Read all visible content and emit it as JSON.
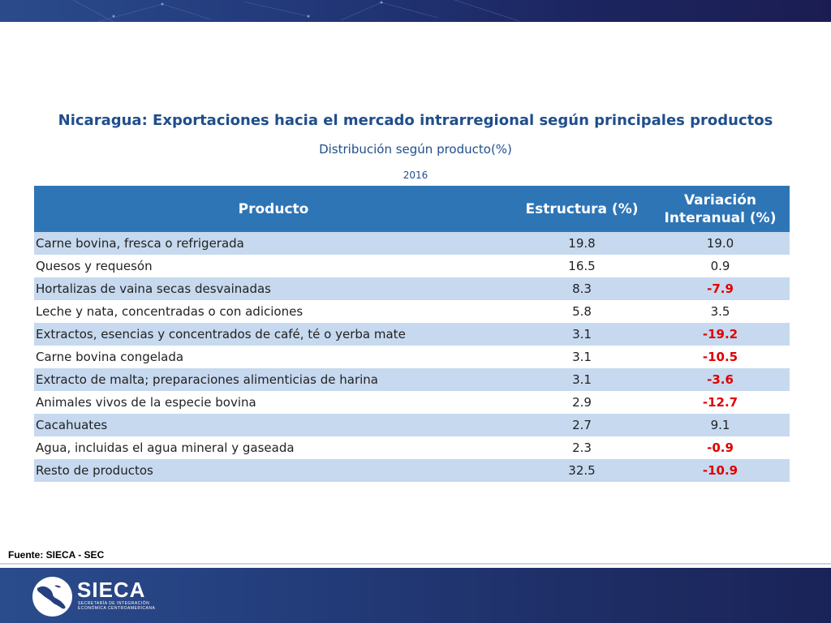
{
  "header": {
    "title": "Nicaragua: Exportaciones hacia el mercado intrarregional según principales productos",
    "subtitle": "Distribución según producto(%)",
    "year": "2016"
  },
  "table": {
    "columns": [
      "Producto",
      "Estructura (%)",
      "Variación Interanual (%)"
    ],
    "rows": [
      {
        "producto": "Carne bovina, fresca o refrigerada",
        "estructura": "19.8",
        "variacion": "19.0"
      },
      {
        "producto": "Quesos y requesón",
        "estructura": "16.5",
        "variacion": "0.9"
      },
      {
        "producto": "Hortalizas de vaina secas desvainadas",
        "estructura": "8.3",
        "variacion": "-7.9"
      },
      {
        "producto": "Leche y nata, concentradas o con adiciones",
        "estructura": "5.8",
        "variacion": "3.5"
      },
      {
        "producto": "Extractos, esencias y concentrados de café, té o yerba mate",
        "estructura": "3.1",
        "variacion": "-19.2"
      },
      {
        "producto": "Carne bovina congelada",
        "estructura": "3.1",
        "variacion": "-10.5"
      },
      {
        "producto": "Extracto de malta; preparaciones alimenticias de harina",
        "estructura": "3.1",
        "variacion": "-3.6"
      },
      {
        "producto": "Animales vivos de la especie bovina",
        "estructura": "2.9",
        "variacion": "-12.7"
      },
      {
        "producto": "Cacahuates",
        "estructura": "2.7",
        "variacion": "9.1"
      },
      {
        "producto": "Agua, incluidas el agua mineral y gaseada",
        "estructura": "2.3",
        "variacion": "-0.9"
      },
      {
        "producto": "Resto de productos",
        "estructura": "32.5",
        "variacion": "-10.9"
      }
    ]
  },
  "source": "Fuente: SIECA - SEC",
  "footer": {
    "logo_name": "SIECA",
    "logo_sub_1": "SECRETARÍA DE INTEGRACIÓN",
    "logo_sub_2": "ECONÓMICA CENTROAMERICANA"
  },
  "colors": {
    "header_bg": "#2e75b6",
    "row_alt": "#c6d9ef",
    "title_text": "#1f4e8c",
    "negative": "#e00000",
    "banner": "#1c2560"
  }
}
